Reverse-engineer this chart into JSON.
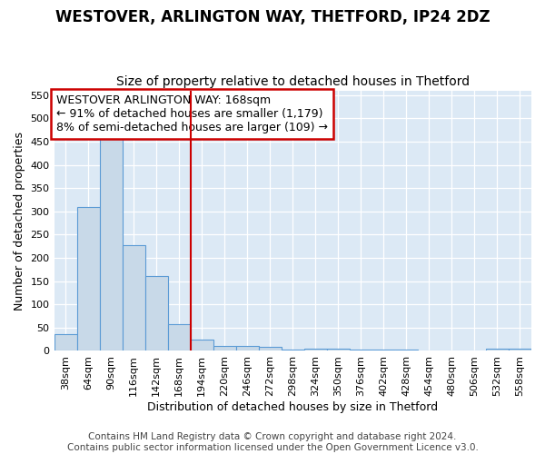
{
  "title": "WESTOVER, ARLINGTON WAY, THETFORD, IP24 2DZ",
  "subtitle": "Size of property relative to detached houses in Thetford",
  "xlabel": "Distribution of detached houses by size in Thetford",
  "ylabel": "Number of detached properties",
  "footer_line1": "Contains HM Land Registry data © Crown copyright and database right 2024.",
  "footer_line2": "Contains public sector information licensed under the Open Government Licence v3.0.",
  "annotation_line1": "WESTOVER ARLINGTON WAY: 168sqm",
  "annotation_line2": "← 91% of detached houses are smaller (1,179)",
  "annotation_line3": "8% of semi-detached houses are larger (109) →",
  "bin_labels": [
    "38sqm",
    "64sqm",
    "90sqm",
    "116sqm",
    "142sqm",
    "168sqm",
    "194sqm",
    "220sqm",
    "246sqm",
    "272sqm",
    "298sqm",
    "324sqm",
    "350sqm",
    "376sqm",
    "402sqm",
    "428sqm",
    "454sqm",
    "480sqm",
    "506sqm",
    "532sqm",
    "558sqm"
  ],
  "bin_values": [
    37,
    310,
    455,
    228,
    160,
    57,
    25,
    10,
    10,
    8,
    3,
    5,
    5,
    3,
    3,
    3,
    0,
    0,
    0,
    5,
    5
  ],
  "bar_color": "#c8d9e8",
  "bar_edge_color": "#5b9bd5",
  "red_line_index": 5,
  "red_line_color": "#cc0000",
  "annotation_box_color": "#ffffff",
  "annotation_box_edge_color": "#cc0000",
  "ylim": [
    0,
    560
  ],
  "yticks": [
    0,
    50,
    100,
    150,
    200,
    250,
    300,
    350,
    400,
    450,
    500,
    550
  ],
  "plot_bg_color": "#dce9f5",
  "fig_bg_color": "#ffffff",
  "grid_color": "#ffffff",
  "title_fontsize": 12,
  "subtitle_fontsize": 10,
  "axis_label_fontsize": 9,
  "tick_fontsize": 8,
  "annotation_fontsize": 9,
  "footer_fontsize": 7.5
}
